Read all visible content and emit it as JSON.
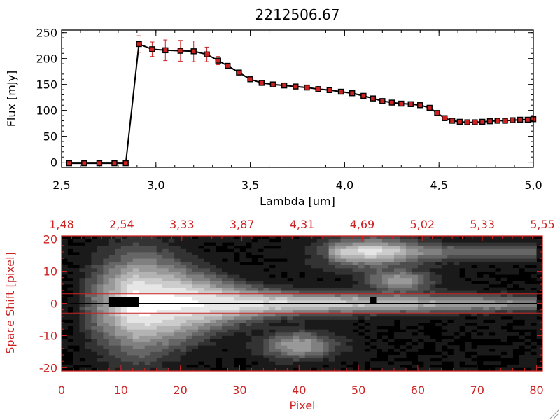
{
  "chart_data": [
    {
      "type": "line",
      "title": "2212506.67",
      "xlabel": "Lambda [um]",
      "ylabel": "Flux [mJy]",
      "xlim": [
        2.5,
        5.0
      ],
      "ylim": [
        -10,
        255
      ],
      "xticks": [
        2.5,
        3.0,
        3.5,
        4.0,
        4.5,
        5.0
      ],
      "xtick_labels": [
        "2,5",
        "3,0",
        "3,5",
        "4,0",
        "4,5",
        "5,0"
      ],
      "yticks": [
        0,
        50,
        100,
        150,
        200,
        250
      ],
      "ytick_labels": [
        "0",
        "50",
        "100",
        "150",
        "200",
        "250"
      ],
      "line_color": "#000000",
      "marker_color": "#cc2222",
      "errorbar_color": "#cc2222",
      "series": [
        {
          "x": [
            2.54,
            2.62,
            2.7,
            2.78,
            2.84,
            2.91,
            2.98,
            3.05,
            3.13,
            3.2,
            3.27,
            3.33,
            3.38,
            3.44,
            3.5,
            3.56,
            3.62,
            3.68,
            3.74,
            3.8,
            3.86,
            3.92,
            3.98,
            4.04,
            4.1,
            4.15,
            4.2,
            4.25,
            4.3,
            4.35,
            4.4,
            4.45,
            4.49,
            4.53,
            4.57,
            4.61,
            4.65,
            4.69,
            4.73,
            4.77,
            4.81,
            4.85,
            4.89,
            4.93,
            4.97,
            5.0
          ],
          "y": [
            -2,
            -2,
            -2,
            -2,
            -2,
            228,
            218,
            216,
            215,
            214,
            208,
            196,
            186,
            173,
            160,
            153,
            150,
            148,
            146,
            144,
            141,
            139,
            136,
            133,
            128,
            123,
            118,
            115,
            113,
            112,
            110,
            105,
            95,
            85,
            80,
            78,
            77,
            77,
            78,
            79,
            80,
            80,
            81,
            82,
            82,
            83
          ],
          "err": [
            0,
            0,
            0,
            0,
            0,
            16,
            14,
            20,
            20,
            20,
            14,
            8,
            4,
            3,
            2,
            2,
            2,
            2,
            2,
            2,
            2,
            2,
            2,
            2,
            2,
            2,
            2,
            2,
            2,
            2,
            2,
            2,
            2,
            2,
            2,
            2,
            2,
            2,
            2,
            2,
            2,
            2,
            2,
            2,
            2,
            2
          ]
        }
      ]
    },
    {
      "type": "heatmap",
      "xlabel": "Pixel",
      "ylabel": "Space Shift [pixel]",
      "xlim": [
        0,
        81
      ],
      "ylim": [
        -21,
        21
      ],
      "xticks": [
        0,
        10,
        20,
        30,
        40,
        50,
        60,
        70,
        80
      ],
      "yticks": [
        -20,
        -10,
        0,
        10,
        20
      ],
      "top_axis_labels": [
        "1,48",
        "2,54",
        "3,33",
        "3,87",
        "4,31",
        "4,69",
        "5,02",
        "5,33",
        "5,55"
      ],
      "axis_color": "#cc2222",
      "colormap": "grayscale",
      "extraction_aperture": [
        -3,
        3
      ],
      "center_line": 0,
      "trace_line_color": "#000000",
      "aperture_line_color": "#cc2222",
      "features": [
        {
          "kind": "trace",
          "x": [
            2,
            80
          ],
          "y": 0,
          "peak_x": 12
        },
        {
          "kind": "blob",
          "x": 52,
          "y": 16,
          "w": 8,
          "h": 5
        },
        {
          "kind": "blob",
          "x": 57,
          "y": 7,
          "w": 5,
          "h": 3
        },
        {
          "kind": "blob",
          "x": 40,
          "y": -13,
          "w": 6,
          "h": 4
        },
        {
          "kind": "streak",
          "x": [
            45,
            80
          ],
          "y": 16
        }
      ],
      "masked_pixels": [
        {
          "x": [
            8,
            13
          ],
          "y": [
            -1,
            2
          ]
        },
        {
          "x": [
            52,
            53
          ],
          "y": [
            0,
            2
          ]
        }
      ]
    }
  ]
}
